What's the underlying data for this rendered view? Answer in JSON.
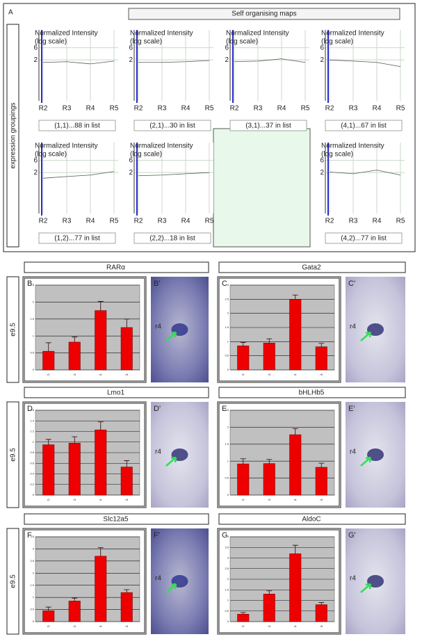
{
  "panel_a": {
    "label": "A",
    "title": "Self organising maps",
    "y_label": "expression groupings"
  },
  "rows": [
    {
      "label": "e9.5"
    },
    {
      "label": "e9.5"
    },
    {
      "label": "e9.5"
    }
  ],
  "images": [
    {
      "label": "B'",
      "marker": "r4"
    },
    {
      "label": "C'",
      "marker": "r4"
    },
    {
      "label": "D'",
      "marker": "r4"
    },
    {
      "label": "E'",
      "marker": "r4"
    },
    {
      "label": "F'",
      "marker": "r4"
    },
    {
      "label": "G'",
      "marker": "r4"
    }
  ],
  "chart_data": [
    {
      "type": "line",
      "title": "Normalized Intensity",
      "subtitle": "(log scale)",
      "caption": "(1,1)...88 in list",
      "categories": [
        "R2",
        "R3",
        "R4",
        "R5"
      ],
      "log": true,
      "ylim": [
        0.05,
        30
      ],
      "yticks": [
        6,
        2
      ],
      "grid": true,
      "series": [
        {
          "color": "#555555",
          "values": [
            1.6,
            1.7,
            1.4,
            1.8
          ]
        }
      ]
    },
    {
      "type": "line",
      "title": "Normalized Intensity",
      "subtitle": "(log scale)",
      "caption": "(2,1)...30 in list",
      "categories": [
        "R2",
        "R3",
        "R4",
        "R5"
      ],
      "log": true,
      "ylim": [
        0.05,
        30
      ],
      "yticks": [
        6,
        2
      ],
      "grid": true,
      "series": [
        {
          "color": "#555555",
          "values": [
            1.6,
            1.6,
            1.7,
            1.9
          ]
        }
      ]
    },
    {
      "type": "line",
      "title": "Normalized Intensity",
      "subtitle": "(log scale)",
      "caption": "(3,1)...37 in list",
      "categories": [
        "R2",
        "R3",
        "R4",
        "R5"
      ],
      "log": true,
      "ylim": [
        0.05,
        30
      ],
      "yticks": [
        6,
        2
      ],
      "grid": true,
      "series": [
        {
          "color": "#555555",
          "values": [
            1.7,
            1.8,
            2.2,
            1.6
          ]
        }
      ]
    },
    {
      "type": "line",
      "title": "Normalized Intensity",
      "subtitle": "(log scale)",
      "caption": "(4,1)...67 in list",
      "categories": [
        "R2",
        "R3",
        "R4",
        "R5"
      ],
      "log": true,
      "ylim": [
        0.05,
        30
      ],
      "yticks": [
        6,
        2
      ],
      "grid": true,
      "series": [
        {
          "color": "#555555",
          "values": [
            2.0,
            1.8,
            1.6,
            1.1
          ]
        }
      ]
    },
    {
      "type": "line",
      "title": "Normalized Intensity",
      "subtitle": "(log scale)",
      "caption": "(1,2)...77 in list",
      "categories": [
        "R2",
        "R3",
        "R4",
        "R5"
      ],
      "log": true,
      "ylim": [
        0.05,
        30
      ],
      "yticks": [
        6,
        2
      ],
      "grid": true,
      "series": [
        {
          "color": "#555555",
          "values": [
            1.2,
            1.4,
            1.6,
            2.2
          ]
        }
      ]
    },
    {
      "type": "line",
      "title": "Normalized Intensity",
      "subtitle": "(log scale)",
      "caption": "(2,2)...18 in list",
      "categories": [
        "R2",
        "R3",
        "R4",
        "R5"
      ],
      "log": true,
      "ylim": [
        0.05,
        30
      ],
      "yticks": [
        6,
        2
      ],
      "grid": true,
      "series": [
        {
          "color": "#555555",
          "values": [
            1.5,
            1.6,
            1.8,
            2.0
          ]
        }
      ]
    },
    {
      "type": "line",
      "title": "Normalized Intensity",
      "subtitle": "(log scale)",
      "caption": "(4,2)...77 in list",
      "categories": [
        "R2",
        "R3",
        "R4",
        "R5"
      ],
      "log": true,
      "ylim": [
        0.05,
        30
      ],
      "yticks": [
        6,
        2
      ],
      "grid": true,
      "series": [
        {
          "color": "#555555",
          "values": [
            2.1,
            1.8,
            2.5,
            1.6
          ]
        }
      ]
    },
    {
      "type": "bar",
      "label": "B",
      "title": "RARα",
      "categories": [
        "r2",
        "r3",
        "r4",
        "r5"
      ],
      "values": [
        0.55,
        0.82,
        1.75,
        1.25
      ],
      "errors": [
        0.25,
        0.15,
        0.27,
        0.25
      ],
      "color": "#ee0000",
      "ylim": [
        0,
        2.5
      ],
      "yticks": [
        0,
        0.5,
        1,
        1.5,
        2,
        2.5
      ],
      "grid": true
    },
    {
      "type": "bar",
      "label": "C",
      "title": "Gata2",
      "categories": [
        "r2",
        "r3",
        "r4",
        "r5"
      ],
      "values": [
        0.85,
        0.95,
        2.5,
        0.82
      ],
      "errors": [
        0.12,
        0.15,
        0.15,
        0.12
      ],
      "color": "#ee0000",
      "ylim": [
        0,
        3
      ],
      "yticks": [
        0,
        0.5,
        1,
        1.5,
        2,
        2.5,
        3
      ],
      "grid": true
    },
    {
      "type": "bar",
      "label": "D",
      "title": "Lmo1",
      "categories": [
        "r2",
        "r3",
        "r4",
        "r5"
      ],
      "values": [
        0.95,
        0.98,
        1.23,
        0.53
      ],
      "errors": [
        0.1,
        0.12,
        0.15,
        0.12
      ],
      "color": "#ee0000",
      "ylim": [
        0,
        1.6
      ],
      "yticks": [
        0,
        0.2,
        0.4,
        0.6,
        0.8,
        1,
        1.2,
        1.4,
        1.6
      ],
      "grid": true
    },
    {
      "type": "bar",
      "label": "E",
      "title": "bHLHb5",
      "categories": [
        "r2",
        "r3",
        "r4",
        "r5"
      ],
      "values": [
        0.92,
        0.93,
        1.78,
        0.82
      ],
      "errors": [
        0.15,
        0.12,
        0.18,
        0.12
      ],
      "color": "#ee0000",
      "ylim": [
        0,
        2.5
      ],
      "yticks": [
        0,
        0.5,
        1,
        1.5,
        2,
        2.5
      ],
      "grid": true
    },
    {
      "type": "bar",
      "label": "F",
      "title": "Slc12a5",
      "categories": [
        "r2",
        "r3",
        "r4",
        "r5"
      ],
      "values": [
        0.45,
        0.85,
        2.7,
        1.2
      ],
      "errors": [
        0.15,
        0.12,
        0.35,
        0.12
      ],
      "color": "#ee0000",
      "ylim": [
        0,
        3.5
      ],
      "yticks": [
        0,
        0.5,
        1,
        1.5,
        2,
        2.5,
        3,
        3.5
      ],
      "grid": true
    },
    {
      "type": "bar",
      "label": "G",
      "title": "AldoC",
      "categories": [
        "r2",
        "r3",
        "r4",
        "r5"
      ],
      "values": [
        0.35,
        1.3,
        3.2,
        0.8
      ],
      "errors": [
        0.08,
        0.15,
        0.4,
        0.1
      ],
      "color": "#ee0000",
      "ylim": [
        0,
        4
      ],
      "yticks": [
        0,
        0.5,
        1,
        1.5,
        2,
        2.5,
        3,
        3.5,
        4
      ],
      "grid": true
    }
  ]
}
